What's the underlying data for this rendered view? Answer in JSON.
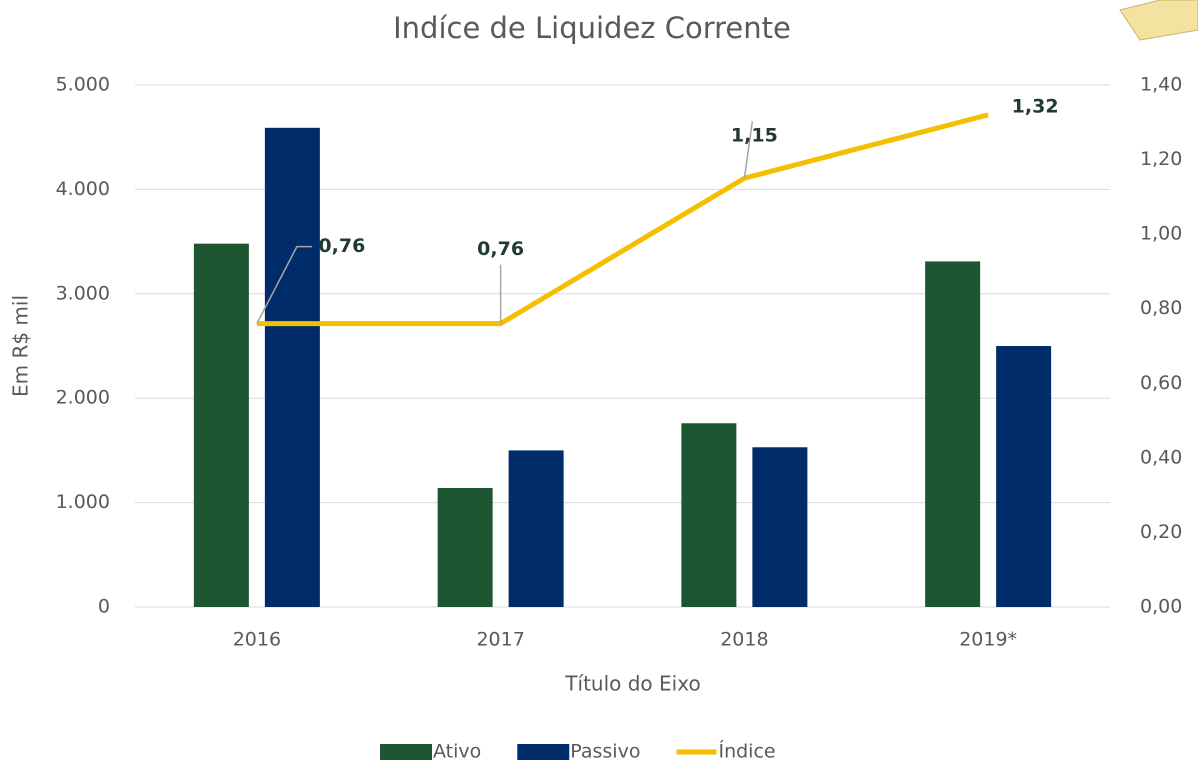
{
  "chart_data": {
    "type": "bar",
    "title": "Indíce de Liquidez Corrente",
    "x_label": "Título do Eixo",
    "y_label": "Em R$ mil",
    "categories": [
      "2016",
      "2017",
      "2018",
      "2019*"
    ],
    "series": [
      {
        "name": "Ativo",
        "color": "#1e5631",
        "values": [
          3480,
          1140,
          1760,
          3310
        ]
      },
      {
        "name": "Passivo",
        "color": "#002d6a",
        "values": [
          4590,
          1500,
          1530,
          2500
        ]
      },
      {
        "name": "Índice",
        "color": "#f5bf00",
        "type": "line",
        "axis": "y2",
        "values": [
          0.76,
          0.76,
          1.15,
          1.32
        ],
        "value_labels": [
          "0,76",
          "0,76",
          "1,15",
          "1,32"
        ]
      }
    ],
    "ylim": [
      0,
      5000
    ],
    "yticks": [
      0,
      {
        "value": 1000,
        "label": "1.000"
      },
      {
        "value": 2000,
        "label": "2.000"
      },
      {
        "value": 3000,
        "label": "3.000"
      },
      {
        "value": 4000,
        "label": "4.000"
      },
      {
        "value": 5000,
        "label": "5.000"
      }
    ],
    "y2lim": [
      0,
      1.4
    ],
    "y2ticks": [
      {
        "value": 0,
        "label": "0,00"
      },
      {
        "value": 0.2,
        "label": "0,20"
      },
      {
        "value": 0.4,
        "label": "0,40"
      },
      {
        "value": 0.6,
        "label": "0,60"
      },
      {
        "value": 0.8,
        "label": "0,80"
      },
      {
        "value": 1.0,
        "label": "1,00"
      },
      {
        "value": 1.2,
        "label": "1,20"
      },
      {
        "value": 1.4,
        "label": "1,40"
      }
    ],
    "grid": true,
    "legend": "bottom"
  }
}
